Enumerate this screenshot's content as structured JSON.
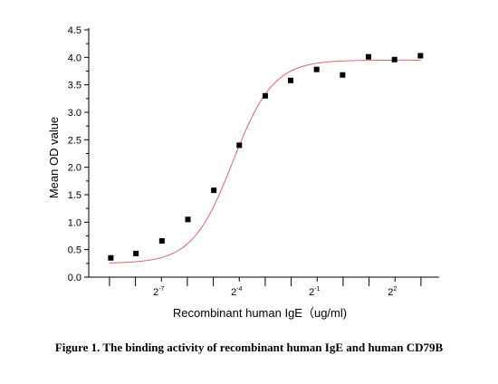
{
  "chart_data": {
    "type": "scatter",
    "xlabel": "Recombinant human IgE（ug/ml)",
    "ylabel": "Mean OD value",
    "x_scale": "log2",
    "xlim": [
      -9.8,
      3.7
    ],
    "ylim": [
      0,
      4.5
    ],
    "x_ticks": [
      {
        "value": -7,
        "base": "2",
        "exp": "-7"
      },
      {
        "value": -4,
        "base": "2",
        "exp": "-4"
      },
      {
        "value": -1,
        "base": "2",
        "exp": "-1"
      },
      {
        "value": 2,
        "base": "2",
        "exp": "2"
      }
    ],
    "x_minor_ticks": [
      -9,
      -8,
      -6,
      -5,
      -3,
      -2,
      0,
      1,
      3
    ],
    "y_ticks": [
      "0.0",
      "0.5",
      "1.0",
      "1.5",
      "2.0",
      "2.5",
      "3.0",
      "3.5",
      "4.0",
      "4.5"
    ],
    "points": [
      {
        "x": -8.95,
        "y": 0.35
      },
      {
        "x": -7.98,
        "y": 0.43
      },
      {
        "x": -6.98,
        "y": 0.66
      },
      {
        "x": -5.98,
        "y": 1.05
      },
      {
        "x": -4.98,
        "y": 1.58
      },
      {
        "x": -4.0,
        "y": 2.4
      },
      {
        "x": -3.0,
        "y": 3.3
      },
      {
        "x": -2.02,
        "y": 3.58
      },
      {
        "x": -1.02,
        "y": 3.78
      },
      {
        "x": -0.02,
        "y": 3.68
      },
      {
        "x": 0.98,
        "y": 4.01
      },
      {
        "x": 1.98,
        "y": 3.96
      },
      {
        "x": 2.98,
        "y": 4.03
      }
    ],
    "fit": {
      "type": "logistic",
      "bottom": 0.25,
      "top": 3.95,
      "x50": -4.25,
      "slope": 0.78
    },
    "marker_color": "#000000",
    "fit_color": "#e06666"
  },
  "caption": "Figure 1. The binding activity of recombinant human IgE and human CD79B"
}
